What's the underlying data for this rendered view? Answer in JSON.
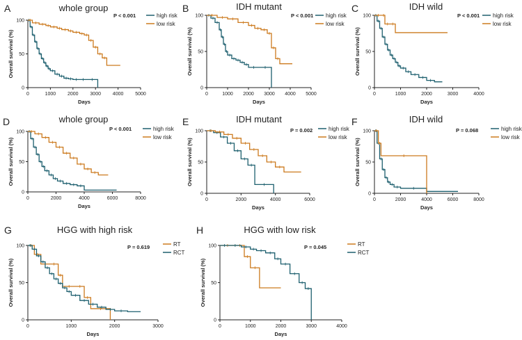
{
  "figure": {
    "description_type": "km-survival-panels"
  },
  "colors": {
    "high": "#1d5f6e",
    "low": "#cc7a1e",
    "rt": "#cc7a1e",
    "rct": "#1d5f6e",
    "axis": "#222222"
  },
  "chart_data": [
    {
      "panel": "A",
      "type": "line",
      "title": "whole group",
      "xlabel": "Days",
      "ylabel": "Overall survival (%)",
      "xlim": [
        0,
        5000
      ],
      "ylim": [
        0,
        100
      ],
      "xticks": [
        0,
        1000,
        2000,
        3000,
        4000,
        5000
      ],
      "yticks": [
        0,
        50,
        100
      ],
      "pvalue": "P < 0.001",
      "series": [
        {
          "name": "high risk",
          "color_key": "high",
          "x": [
            0,
            100,
            200,
            300,
            400,
            500,
            600,
            700,
            800,
            900,
            1000,
            1200,
            1400,
            1600,
            1800,
            2000,
            2300,
            2600,
            3100,
            3100
          ],
          "y": [
            100,
            90,
            78,
            68,
            58,
            50,
            43,
            37,
            32,
            28,
            25,
            20,
            17,
            14,
            13,
            12,
            12,
            12,
            12,
            0
          ]
        },
        {
          "name": "low risk",
          "color_key": "low",
          "x": [
            0,
            200,
            500,
            800,
            1000,
            1300,
            1500,
            1800,
            2000,
            2300,
            2500,
            2700,
            2900,
            3100,
            3300,
            3500,
            4100
          ],
          "y": [
            100,
            96,
            94,
            92,
            90,
            88,
            86,
            84,
            82,
            80,
            78,
            70,
            60,
            50,
            44,
            33,
            33
          ]
        }
      ]
    },
    {
      "panel": "B",
      "type": "line",
      "title": "IDH mutant",
      "xlabel": "Days",
      "ylabel": "Overall survival (%)",
      "xlim": [
        0,
        5000
      ],
      "ylim": [
        0,
        100
      ],
      "xticks": [
        0,
        1000,
        2000,
        3000,
        4000,
        5000
      ],
      "yticks": [
        0,
        50,
        100
      ],
      "pvalue": "P < 0.001",
      "series": [
        {
          "name": "high risk",
          "color_key": "high",
          "x": [
            0,
            200,
            400,
            600,
            700,
            800,
            900,
            1000,
            1200,
            1400,
            1600,
            1800,
            2000,
            2500,
            3100,
            3100
          ],
          "y": [
            100,
            96,
            90,
            80,
            70,
            60,
            50,
            45,
            40,
            38,
            35,
            32,
            28,
            28,
            28,
            0
          ]
        },
        {
          "name": "low risk",
          "color_key": "low",
          "x": [
            0,
            500,
            1000,
            1500,
            2000,
            2300,
            2600,
            2900,
            3100,
            3300,
            3500,
            4100
          ],
          "y": [
            100,
            97,
            95,
            90,
            86,
            82,
            80,
            75,
            55,
            40,
            33,
            33
          ]
        }
      ]
    },
    {
      "panel": "C",
      "type": "line",
      "title": "IDH wild",
      "xlabel": "Days",
      "ylabel": "Overall survival (%)",
      "xlim": [
        0,
        4000
      ],
      "ylim": [
        0,
        100
      ],
      "xticks": [
        0,
        1000,
        2000,
        3000,
        4000
      ],
      "yticks": [
        0,
        50,
        100
      ],
      "pvalue": "P < 0.001",
      "series": [
        {
          "name": "high risk",
          "color_key": "high",
          "x": [
            0,
            100,
            200,
            300,
            400,
            500,
            600,
            700,
            800,
            900,
            1000,
            1200,
            1400,
            1700,
            2000,
            2300,
            2600
          ],
          "y": [
            100,
            92,
            82,
            70,
            60,
            52,
            45,
            40,
            35,
            30,
            27,
            22,
            18,
            14,
            10,
            8,
            8
          ]
        },
        {
          "name": "low risk",
          "color_key": "low",
          "x": [
            0,
            300,
            400,
            600,
            800,
            2800
          ],
          "y": [
            100,
            100,
            88,
            88,
            76,
            76
          ]
        }
      ]
    },
    {
      "panel": "D",
      "type": "line",
      "title": "whole group",
      "xlabel": "Days",
      "ylabel": "Overall survival (%)",
      "xlim": [
        0,
        8000
      ],
      "ylim": [
        0,
        100
      ],
      "xticks": [
        0,
        2000,
        4000,
        6000,
        8000
      ],
      "yticks": [
        0,
        50,
        100
      ],
      "pvalue": "P < 0.001",
      "series": [
        {
          "name": "high risk",
          "color_key": "high",
          "x": [
            0,
            200,
            400,
            600,
            800,
            1000,
            1200,
            1500,
            1800,
            2100,
            2500,
            3000,
            3500,
            4000,
            4000,
            6300
          ],
          "y": [
            100,
            88,
            74,
            62,
            50,
            42,
            35,
            28,
            22,
            18,
            14,
            12,
            10,
            8,
            3,
            3
          ]
        },
        {
          "name": "low risk",
          "color_key": "low",
          "x": [
            0,
            500,
            1000,
            1500,
            2000,
            2500,
            3000,
            3500,
            4000,
            4500,
            5000,
            5700
          ],
          "y": [
            100,
            96,
            90,
            82,
            74,
            64,
            56,
            46,
            38,
            32,
            28,
            28
          ]
        }
      ]
    },
    {
      "panel": "E",
      "type": "line",
      "title": "IDH mutant",
      "xlabel": "Days",
      "ylabel": "Overall survival (%)",
      "xlim": [
        0,
        6000
      ],
      "ylim": [
        0,
        100
      ],
      "xticks": [
        0,
        2000,
        4000,
        6000
      ],
      "yticks": [
        0,
        50,
        100
      ],
      "pvalue": "P = 0.002",
      "series": [
        {
          "name": "high risk",
          "color_key": "high",
          "x": [
            0,
            400,
            800,
            1200,
            1600,
            2000,
            2400,
            2800,
            2800,
            3900,
            3900
          ],
          "y": [
            100,
            97,
            90,
            80,
            68,
            55,
            45,
            35,
            14,
            14,
            0
          ]
        },
        {
          "name": "low risk",
          "color_key": "low",
          "x": [
            0,
            500,
            1000,
            1500,
            2000,
            2500,
            3000,
            3500,
            4000,
            4500,
            5500
          ],
          "y": [
            100,
            98,
            94,
            88,
            80,
            70,
            60,
            50,
            42,
            34,
            34
          ]
        }
      ]
    },
    {
      "panel": "F",
      "type": "line",
      "title": "IDH wild",
      "xlabel": "Days",
      "ylabel": "Overall survival (%)",
      "xlim": [
        0,
        8000
      ],
      "ylim": [
        0,
        100
      ],
      "xticks": [
        0,
        2000,
        4000,
        6000,
        8000
      ],
      "yticks": [
        0,
        50,
        100
      ],
      "pvalue": "P = 0.068",
      "series": [
        {
          "name": "high risk",
          "color_key": "high",
          "x": [
            0,
            200,
            400,
            600,
            800,
            1000,
            1200,
            1500,
            2000,
            4000,
            4000,
            6400
          ],
          "y": [
            100,
            80,
            55,
            38,
            25,
            18,
            14,
            10,
            8,
            8,
            3,
            3
          ]
        },
        {
          "name": "low risk",
          "color_key": "low",
          "x": [
            0,
            300,
            500,
            4000,
            4000
          ],
          "y": [
            100,
            80,
            60,
            60,
            0
          ]
        }
      ]
    },
    {
      "panel": "G",
      "type": "line",
      "title": "HGG with high risk",
      "xlabel": "Days",
      "ylabel": "Overall survival (%)",
      "xlim": [
        0,
        3000
      ],
      "ylim": [
        0,
        100
      ],
      "xticks": [
        0,
        1000,
        2000,
        3000
      ],
      "yticks": [
        0,
        50,
        100
      ],
      "pvalue": "P = 0.619",
      "series": [
        {
          "name": "RT",
          "color_key": "rt",
          "x": [
            0,
            150,
            300,
            500,
            700,
            800,
            1100,
            1300,
            1450,
            1900,
            1900
          ],
          "y": [
            100,
            88,
            75,
            75,
            60,
            45,
            45,
            30,
            15,
            15,
            0
          ]
        },
        {
          "name": "RCT",
          "color_key": "rct",
          "x": [
            0,
            100,
            200,
            300,
            400,
            500,
            600,
            700,
            800,
            900,
            1000,
            1200,
            1400,
            1600,
            1800,
            2000,
            2300,
            2600
          ],
          "y": [
            100,
            95,
            86,
            78,
            70,
            62,
            55,
            49,
            43,
            38,
            33,
            26,
            21,
            17,
            14,
            12,
            11,
            11
          ]
        }
      ]
    },
    {
      "panel": "H",
      "type": "line",
      "title": "HGG with low risk",
      "xlabel": "Days",
      "ylabel": "Overall survival (%)",
      "xlim": [
        0,
        4000
      ],
      "ylim": [
        0,
        100
      ],
      "xticks": [
        0,
        1000,
        2000,
        3000,
        4000
      ],
      "yticks": [
        0,
        50,
        100
      ],
      "pvalue": "P = 0.045",
      "series": [
        {
          "name": "RT",
          "color_key": "rt",
          "x": [
            0,
            500,
            800,
            1000,
            1300,
            2000
          ],
          "y": [
            100,
            100,
            85,
            70,
            43,
            43
          ]
        },
        {
          "name": "RCT",
          "color_key": "rct",
          "x": [
            0,
            300,
            700,
            1000,
            1200,
            1500,
            1800,
            2000,
            2300,
            2600,
            2800,
            3000,
            3000
          ],
          "y": [
            100,
            100,
            98,
            95,
            93,
            90,
            82,
            75,
            62,
            50,
            42,
            42,
            0
          ]
        }
      ]
    }
  ]
}
